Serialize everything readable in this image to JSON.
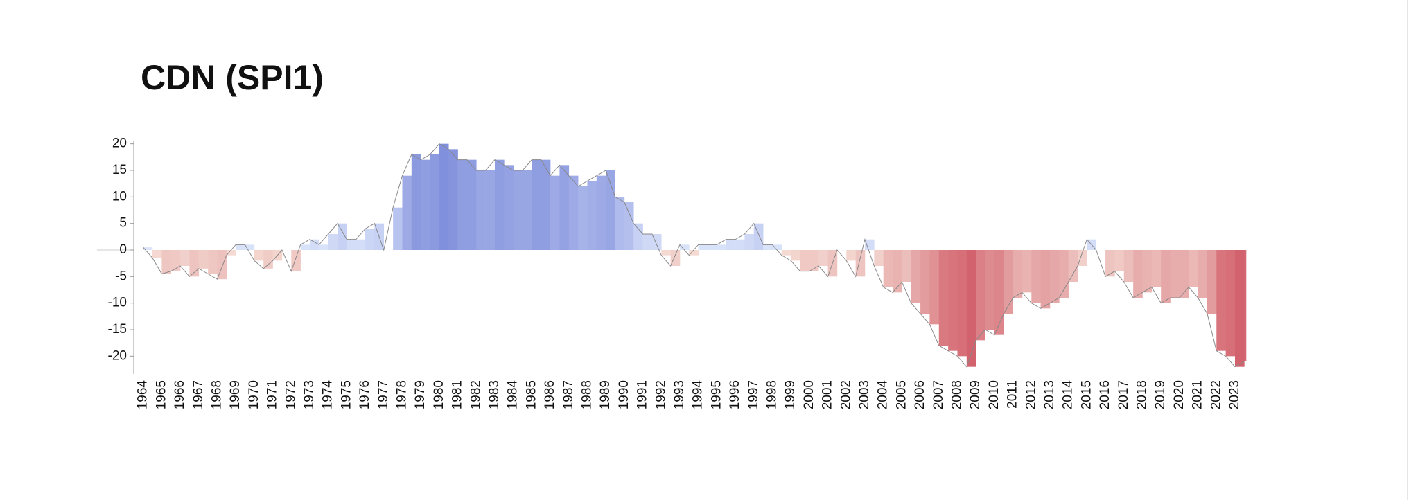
{
  "chart_data": {
    "type": "area-bars",
    "title": "CDN (SPI1)",
    "x": [
      1964,
      1964.5,
      1965,
      1965.5,
      1966,
      1966.5,
      1967,
      1967.5,
      1968,
      1968.5,
      1969,
      1969.5,
      1970,
      1970.5,
      1971,
      1971.5,
      1972,
      1972.5,
      1973,
      1973.5,
      1974,
      1974.5,
      1975,
      1975.5,
      1976,
      1976.5,
      1977,
      1977.5,
      1978,
      1978.5,
      1979,
      1979.5,
      1980,
      1980.5,
      1981,
      1981.5,
      1982,
      1982.5,
      1983,
      1983.5,
      1984,
      1984.5,
      1985,
      1985.5,
      1986,
      1986.5,
      1987,
      1987.5,
      1988,
      1988.5,
      1989,
      1989.5,
      1990,
      1990.5,
      1991,
      1991.5,
      1992,
      1992.5,
      1993,
      1993.5,
      1994,
      1994.5,
      1995,
      1995.5,
      1996,
      1996.5,
      1997,
      1997.5,
      1998,
      1998.5,
      1999,
      1999.5,
      2000,
      2000.5,
      2001,
      2001.5,
      2002,
      2002.5,
      2003,
      2003.5,
      2004,
      2004.5,
      2005,
      2005.5,
      2006,
      2006.5,
      2007,
      2007.5,
      2008,
      2008.5,
      2009,
      2009.5,
      2010,
      2010.5,
      2011,
      2011.5,
      2012,
      2012.5,
      2013,
      2013.5,
      2014,
      2014.5,
      2015,
      2015.5,
      2016,
      2016.5,
      2017,
      2017.5,
      2018,
      2018.5,
      2019,
      2019.5,
      2020,
      2020.5,
      2021,
      2021.5,
      2022,
      2022.5,
      2023,
      2023.5
    ],
    "values": [
      0.5,
      -1.5,
      -4.5,
      -4,
      -3,
      -5,
      -3.5,
      -4.5,
      -5.5,
      -1,
      1,
      1,
      -2,
      -3.5,
      -2,
      0,
      -4,
      1,
      2,
      1,
      3,
      5,
      2,
      2,
      4,
      5,
      0,
      8,
      14,
      18,
      17,
      18,
      20,
      19,
      17,
      17,
      15,
      15,
      17,
      16,
      15,
      15,
      17,
      17,
      14,
      16,
      14,
      12,
      13,
      14,
      15,
      10,
      9,
      5,
      3,
      3,
      -1,
      -3,
      1,
      -1,
      1,
      1,
      1,
      2,
      2,
      3,
      5,
      1,
      1,
      -1,
      -2,
      -4,
      -4,
      -3,
      -5,
      0,
      -2,
      -5,
      2,
      -3,
      -7,
      -8,
      -6,
      -10,
      -12,
      -14,
      -18,
      -19,
      -20,
      -22,
      -17,
      -15,
      -16,
      -12,
      -9,
      -8,
      -10,
      -11,
      -10,
      -9,
      -6,
      -3,
      2,
      0,
      -5,
      -4,
      -6,
      -9,
      -8,
      -7,
      -10,
      -9,
      -9,
      -7,
      -9,
      -12,
      -19,
      -20,
      -22,
      -21
    ],
    "colors": {
      "positive": "#6f7fd6",
      "negative": "#cf5864",
      "positive_light": "#dde6fb",
      "negative_light": "#f6e0d8",
      "outline": "#888888"
    },
    "xlim": [
      1963.9,
      2023.6
    ],
    "xticks": [
      1964,
      1965,
      1966,
      1967,
      1968,
      1969,
      1970,
      1971,
      1972,
      1973,
      1974,
      1975,
      1976,
      1977,
      1978,
      1979,
      1980,
      1981,
      1982,
      1983,
      1984,
      1985,
      1986,
      1987,
      1988,
      1989,
      1990,
      1991,
      1992,
      1993,
      1994,
      1995,
      1996,
      1997,
      1998,
      1999,
      2000,
      2001,
      2002,
      2003,
      2004,
      2005,
      2006,
      2007,
      2008,
      2009,
      2010,
      2011,
      2012,
      2013,
      2014,
      2015,
      2016,
      2017,
      2018,
      2019,
      2020,
      2021,
      2022,
      2023
    ],
    "ylim": [
      -24,
      21
    ],
    "yticks": [
      -20,
      -15,
      -10,
      -5,
      0,
      5,
      10,
      15,
      20
    ]
  }
}
